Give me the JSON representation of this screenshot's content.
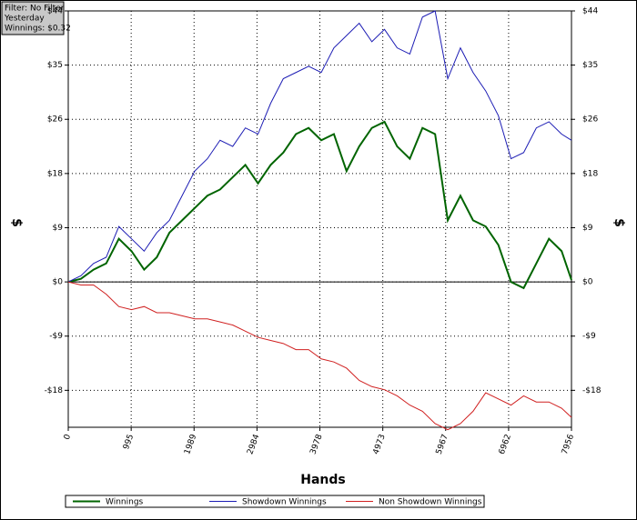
{
  "chart_data": {
    "type": "line",
    "xlabel": "Hands",
    "ylabel": "$",
    "y2label": "$",
    "annotations": [
      "Filter: No Filter",
      "Yesterday",
      "Winnings: $0.32"
    ],
    "x": [
      0,
      200,
      400,
      600,
      800,
      1000,
      1200,
      1400,
      1600,
      1800,
      2000,
      2200,
      2400,
      2600,
      2800,
      3000,
      3200,
      3400,
      3600,
      3800,
      4000,
      4200,
      4400,
      4600,
      4800,
      5000,
      5200,
      5400,
      5600,
      5800,
      6000,
      6200,
      6400,
      6600,
      6800,
      7000,
      7200,
      7400,
      7600,
      7800,
      7956
    ],
    "series": [
      {
        "name": "Winnings",
        "color": "#006400",
        "values": [
          0,
          0.5,
          2,
          3,
          7,
          5,
          2,
          4,
          8,
          10,
          12,
          14,
          15,
          17,
          19,
          16,
          19,
          21,
          24,
          25,
          23,
          24,
          18,
          22,
          25,
          26,
          22,
          20,
          25,
          24,
          10,
          14,
          10,
          9,
          6,
          0,
          -1,
          3,
          7,
          5,
          0.3
        ]
      },
      {
        "name": "Showdown Winnings",
        "color": "#1c1cb4",
        "values": [
          0,
          1,
          3,
          4,
          9,
          7,
          5,
          8,
          10,
          14,
          18,
          20,
          23,
          22,
          25,
          24,
          29,
          33,
          34,
          35,
          34,
          38,
          40,
          42,
          39,
          41,
          38,
          37,
          43,
          44,
          33,
          38,
          34,
          31,
          27,
          20,
          21,
          25,
          26,
          24,
          23
        ]
      },
      {
        "name": "Non Showdown Winnings",
        "color": "#d02020",
        "values": [
          0,
          -0.5,
          -0.5,
          -2,
          -4,
          -4.5,
          -4,
          -5,
          -5,
          -5.5,
          -6,
          -6,
          -6.5,
          -7,
          -8,
          -9,
          -9.5,
          -10,
          -11,
          -11,
          -12.5,
          -13,
          -14,
          -16,
          -17,
          -17.5,
          -18.5,
          -20,
          -21,
          -23,
          -24,
          -23,
          -21,
          -18,
          -19,
          -20,
          -18.5,
          -19.5,
          -19.5,
          -20.5,
          -22
        ]
      }
    ],
    "xlim": [
      0,
      7956
    ],
    "xticks": [
      0,
      995,
      1989,
      2984,
      3978,
      4973,
      5967,
      6962,
      7956
    ],
    "ylim": [
      -23.6,
      44
    ],
    "yticks": [
      {
        "value": -17.6,
        "label": "-$18"
      },
      {
        "value": -8.8,
        "label": "-$9"
      },
      {
        "value": 0,
        "label": "$0"
      },
      {
        "value": 8.8,
        "label": "$9"
      },
      {
        "value": 17.6,
        "label": "$18"
      },
      {
        "value": 26.4,
        "label": "$26"
      },
      {
        "value": 35.2,
        "label": "$35"
      },
      {
        "value": 44,
        "label": "$44"
      }
    ],
    "y2lim": [
      -23.6,
      44
    ],
    "y2ticks": [
      {
        "value": -17.6,
        "label": "-$18"
      },
      {
        "value": -8.8,
        "label": "-$9"
      },
      {
        "value": 0,
        "label": "$0"
      },
      {
        "value": 8.8,
        "label": "$9"
      },
      {
        "value": 17.6,
        "label": "$18"
      },
      {
        "value": 26.4,
        "label": "$26"
      },
      {
        "value": 35.2,
        "label": "$35"
      },
      {
        "value": 44,
        "label": "$44"
      }
    ],
    "grid": true
  }
}
